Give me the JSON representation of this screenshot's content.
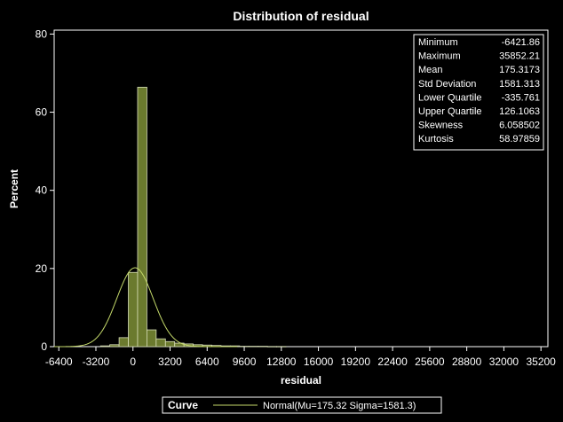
{
  "chart_data": {
    "type": "bar",
    "title": "Distribution of residual",
    "xlabel": "residual",
    "ylabel": "Percent",
    "xlim": [
      -6800,
      35800
    ],
    "ylim": [
      0,
      81
    ],
    "x_ticks": [
      "-6400",
      "-3200",
      "0",
      "3200",
      "6400",
      "9600",
      "12800",
      "16000",
      "19200",
      "22400",
      "25600",
      "28800",
      "32000",
      "35200"
    ],
    "y_ticks": [
      "0",
      "20",
      "40",
      "60",
      "80"
    ],
    "bin_width": 800,
    "bins": [
      {
        "x": -2400,
        "value": 0.2
      },
      {
        "x": -1600,
        "value": 0.5
      },
      {
        "x": -800,
        "value": 2.3
      },
      {
        "x": 0,
        "value": 19.0
      },
      {
        "x": 800,
        "value": 66.4
      },
      {
        "x": 1600,
        "value": 4.3
      },
      {
        "x": 2400,
        "value": 2.0
      },
      {
        "x": 3200,
        "value": 1.3
      },
      {
        "x": 4000,
        "value": 0.9
      },
      {
        "x": 4800,
        "value": 0.7
      },
      {
        "x": 5600,
        "value": 0.5
      },
      {
        "x": 6400,
        "value": 0.4
      },
      {
        "x": 7200,
        "value": 0.3
      },
      {
        "x": 8000,
        "value": 0.2
      },
      {
        "x": 8800,
        "value": 0.2
      },
      {
        "x": 9600,
        "value": 0.1
      },
      {
        "x": 10400,
        "value": 0.1
      },
      {
        "x": 11200,
        "value": 0.1
      },
      {
        "x": 12000,
        "value": 0.05
      },
      {
        "x": 12800,
        "value": 0.05
      }
    ],
    "curve": {
      "mu": 175.3173,
      "sigma": 1581.313
    },
    "stats": [
      {
        "label": "Minimum",
        "value": "-6421.86"
      },
      {
        "label": "Maximum",
        "value": "35852.21"
      },
      {
        "label": "Mean",
        "value": "175.3173"
      },
      {
        "label": "Std Deviation",
        "value": "1581.313"
      },
      {
        "label": "Lower Quartile",
        "value": "-335.761"
      },
      {
        "label": "Upper Quartile",
        "value": "126.1063"
      },
      {
        "label": "Skewness",
        "value": "6.058502"
      },
      {
        "label": "Kurtosis",
        "value": "58.97859"
      }
    ],
    "legend": {
      "heading": "Curve",
      "entry": "Normal(Mu=175.32 Sigma=1581.3)",
      "position": "bottom"
    },
    "colors": {
      "background": "#000000",
      "bar_fill": "#6b7a2e",
      "bar_edge": "#d8dfb8",
      "curve": "#c4d96a",
      "axis": "#ffffff"
    }
  }
}
